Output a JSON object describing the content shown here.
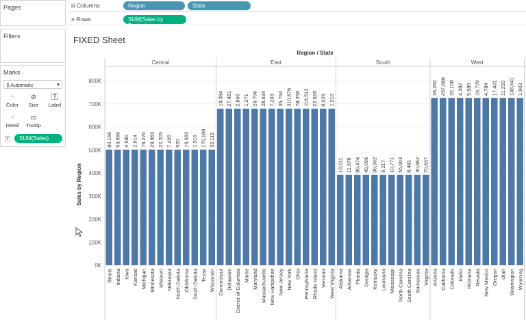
{
  "left": {
    "pages": "Pages",
    "filters": "Filters",
    "marks": "Marks",
    "mark_type": "Automatic",
    "buttons": [
      {
        "label": "Color",
        "icon": "color-dots-icon"
      },
      {
        "label": "Size",
        "icon": "size-icon"
      },
      {
        "label": "Label",
        "icon": "label-icon"
      },
      {
        "label": "Detail",
        "icon": "detail-icon"
      },
      {
        "label": "Tooltip",
        "icon": "tooltip-icon"
      }
    ],
    "mark_pill": "SUM(Sales)"
  },
  "shelves": {
    "columns_label": "Columns",
    "rows_label": "Rows",
    "columns": [
      "Region",
      "State"
    ],
    "rows": [
      "SUM(Sales by Region)"
    ]
  },
  "sheet": {
    "title": "FIXED Sheet"
  },
  "colors": {
    "bar": "#4e79a7",
    "dim_pill": "#4996b2",
    "measure_pill": "#00b180"
  },
  "chart_data": {
    "type": "bar",
    "header": "Region / State",
    "ylabel": "Sales by Region",
    "ylim": [
      0,
      860000
    ],
    "yticks": [
      "0K",
      "100K",
      "200K",
      "300K",
      "400K",
      "500K",
      "600K",
      "700K",
      "800K"
    ],
    "regions": [
      {
        "name": "Central",
        "value": 501240,
        "states": [
          "Illinois",
          "Indiana",
          "Iowa",
          "Kansas",
          "Michigan",
          "Minnesota",
          "Missouri",
          "Nebraska",
          "North Dakota",
          "Oklahoma",
          "South Dakota",
          "Texas",
          "Wisconsin"
        ],
        "labels": [
          "80,166",
          "53,555",
          "4,580",
          "2,914",
          "76,270",
          "29,863",
          "22,205",
          "7,465",
          "920",
          "19,683",
          "1,316",
          "170,188",
          "32,115"
        ]
      },
      {
        "name": "East",
        "value": 678781,
        "states": [
          "Connecticut",
          "Delaware",
          "District of Columbia",
          "Maine",
          "Maryland",
          "Massachusetts",
          "New Hampshire",
          "New Jersey",
          "New York",
          "Ohio",
          "Pennsylvania",
          "Rhode Island",
          "Vermont",
          "West Virginia"
        ],
        "labels": [
          "13,384",
          "27,451",
          "2,865",
          "1,271",
          "23,706",
          "28,634",
          "7,293",
          "35,764",
          "310,876",
          "78,258",
          "116,512",
          "22,628",
          "8,929",
          "1,210"
        ]
      },
      {
        "name": "South",
        "value": 391722,
        "states": [
          "Alabama",
          "Arkansas",
          "Florida",
          "Georgia",
          "Kentucky",
          "Louisiana",
          "Mississippi",
          "North Carolina",
          "South Carolina",
          "Tennessee",
          "Virginia"
        ],
        "labels": [
          "19,511",
          "11,678",
          "89,474",
          "49,096",
          "36,592",
          "9,217",
          "10,771",
          "55,603",
          "8,482",
          "30,662",
          "70,637"
        ]
      },
      {
        "name": "West",
        "value": 725458,
        "states": [
          "Arizona",
          "California",
          "Colorado",
          "Idaho",
          "Montana",
          "Nevada",
          "New Mexico",
          "Oregon",
          "Utah",
          "Washington",
          "Wyoming"
        ],
        "labels": [
          "35,282",
          "457,688",
          "32,108",
          "4,382",
          "5,589",
          "16,729",
          "4,784",
          "17,431",
          "11,220",
          "138,641",
          "1,603"
        ]
      }
    ]
  }
}
